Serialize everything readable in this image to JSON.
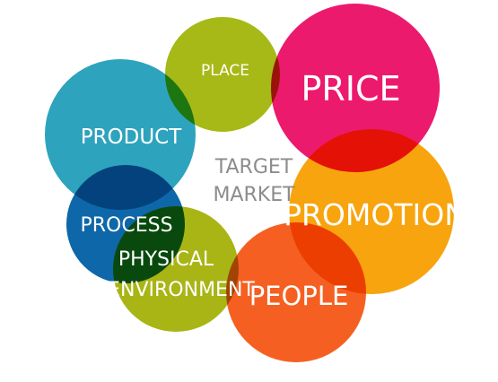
{
  "diagram": {
    "center": {
      "line1": "TARGET",
      "line2": "MARKET"
    },
    "circles": [
      {
        "id": "product",
        "line1": "PRODUCT",
        "line2": "",
        "color": "#2da3bd"
      },
      {
        "id": "place",
        "line1": "PLACE",
        "line2": "",
        "color": "#a6b916"
      },
      {
        "id": "price",
        "line1": "PRICE",
        "line2": "",
        "color": "#ec1a6c"
      },
      {
        "id": "promotion",
        "line1": "PROMOTION",
        "line2": "",
        "color": "#f7a40e"
      },
      {
        "id": "people",
        "line1": "PEOPLE",
        "line2": "",
        "color": "#f56022"
      },
      {
        "id": "physical",
        "line1": "PHYSICAL",
        "line2": "ENVIRONMENT",
        "color": "#a8b515"
      },
      {
        "id": "process",
        "line1": "PROCESS",
        "line2": "",
        "color": "#0e67a8"
      }
    ]
  }
}
